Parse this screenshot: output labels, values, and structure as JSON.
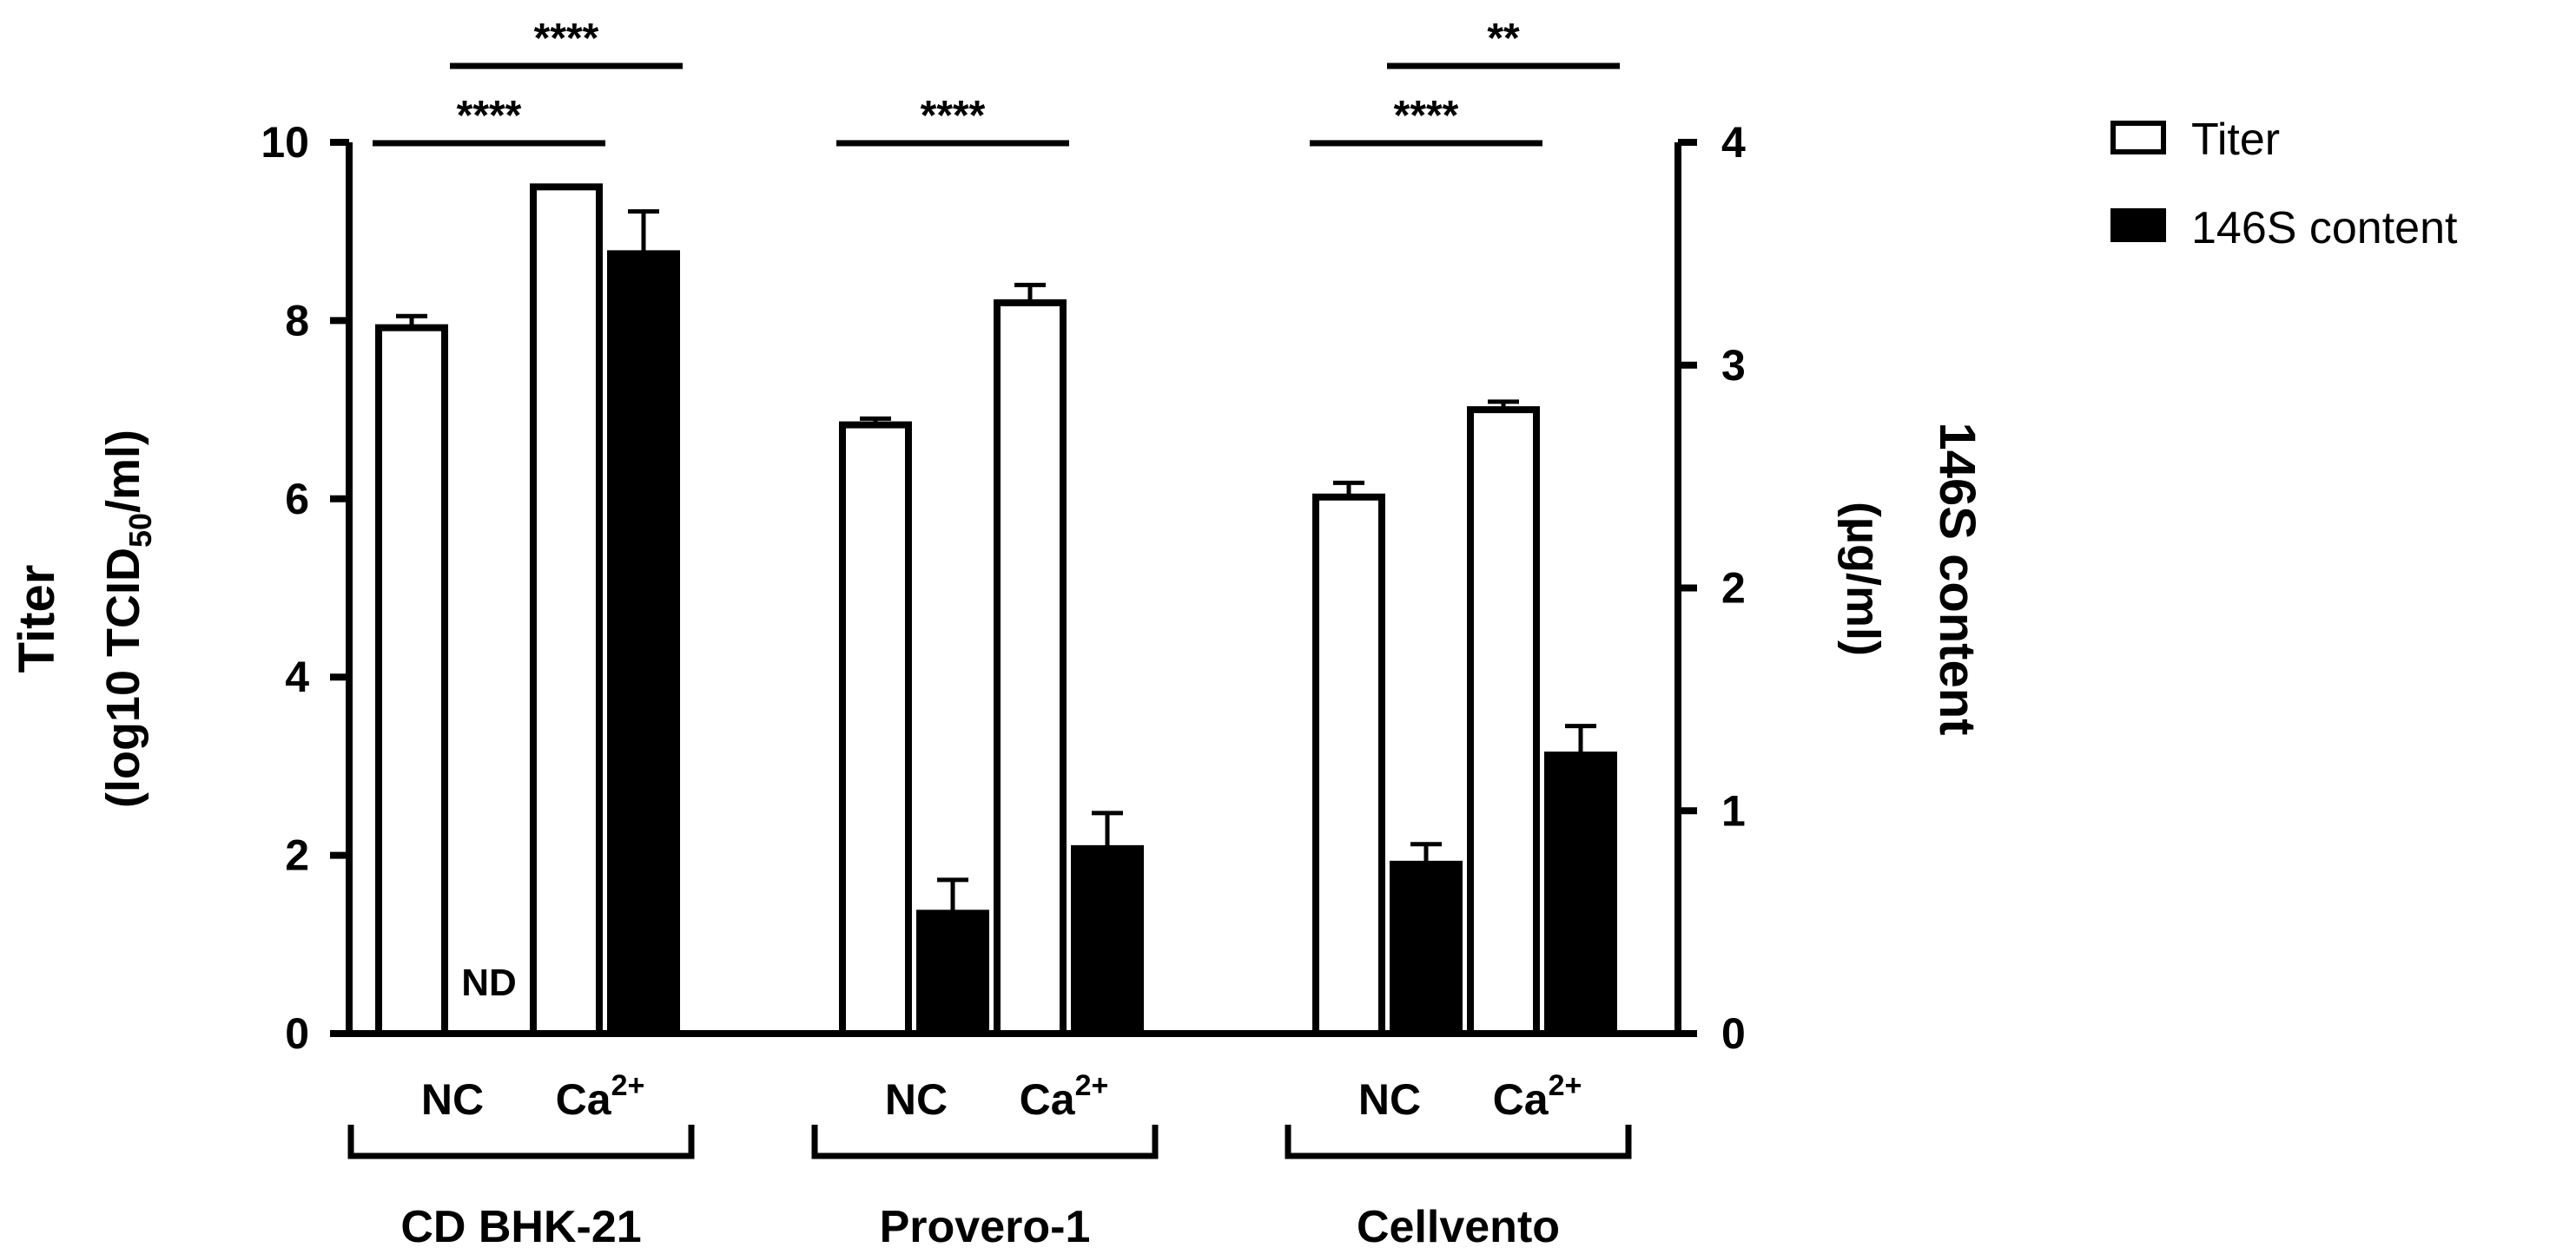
{
  "chart_data": {
    "type": "bar",
    "title": "",
    "ylabel_left_line1": "Titer",
    "ylabel_left_line2_pre": "(log10 TCID",
    "ylabel_left_line2_sub": "50",
    "ylabel_left_line2_post": "/ml)",
    "ylabel_right_line1": "146S content",
    "ylabel_right_line2": "(µg/ml)",
    "ylim_left": [
      0,
      10
    ],
    "ylim_right": [
      0,
      4
    ],
    "yticks_left": [
      "0",
      "2",
      "4",
      "6",
      "8",
      "10"
    ],
    "yticks_right": [
      "0",
      "1",
      "2",
      "3",
      "4"
    ],
    "legend": [
      {
        "label": "Titer",
        "fill": "#ffffff"
      },
      {
        "label": "146S content",
        "fill": "#000000"
      }
    ],
    "condition_labels": {
      "nc": "NC",
      "ca_base": "Ca",
      "ca_sup": "2+"
    },
    "nd_label": "ND",
    "groups": [
      {
        "name": "CD BHK-21",
        "titer": {
          "NC": 7.92,
          "Ca": 9.5
        },
        "titer_err": {
          "NC": 0.13,
          "Ca": 0.0
        },
        "content": {
          "NC": null,
          "Ca": 3.5
        },
        "content_err": {
          "NC": null,
          "Ca": 0.19
        },
        "sig": [
          {
            "label": "****",
            "between": [
              "NC_titer",
              "Ca_titer"
            ],
            "level": 1
          },
          {
            "label": "****",
            "between": [
              "NC_content",
              "Ca_content"
            ],
            "level": 2
          }
        ]
      },
      {
        "name": "Provero-1",
        "titer": {
          "NC": 6.83,
          "Ca": 8.2
        },
        "titer_err": {
          "NC": 0.07,
          "Ca": 0.2
        },
        "content": {
          "NC": 0.54,
          "Ca": 0.83
        },
        "content_err": {
          "NC": 0.15,
          "Ca": 0.16
        },
        "sig": [
          {
            "label": "****",
            "between": [
              "NC_titer",
              "Ca_titer"
            ],
            "level": 1
          }
        ]
      },
      {
        "name": "Cellvento",
        "titer": {
          "NC": 6.02,
          "Ca": 7.0
        },
        "titer_err": {
          "NC": 0.16,
          "Ca": 0.09
        },
        "content": {
          "NC": 0.76,
          "Ca": 1.25
        },
        "content_err": {
          "NC": 0.09,
          "Ca": 0.13
        },
        "sig": [
          {
            "label": "****",
            "between": [
              "NC_titer",
              "Ca_titer"
            ],
            "level": 1
          },
          {
            "label": "**",
            "between": [
              "NC_content",
              "Ca_content"
            ],
            "level": 2
          }
        ]
      }
    ]
  }
}
